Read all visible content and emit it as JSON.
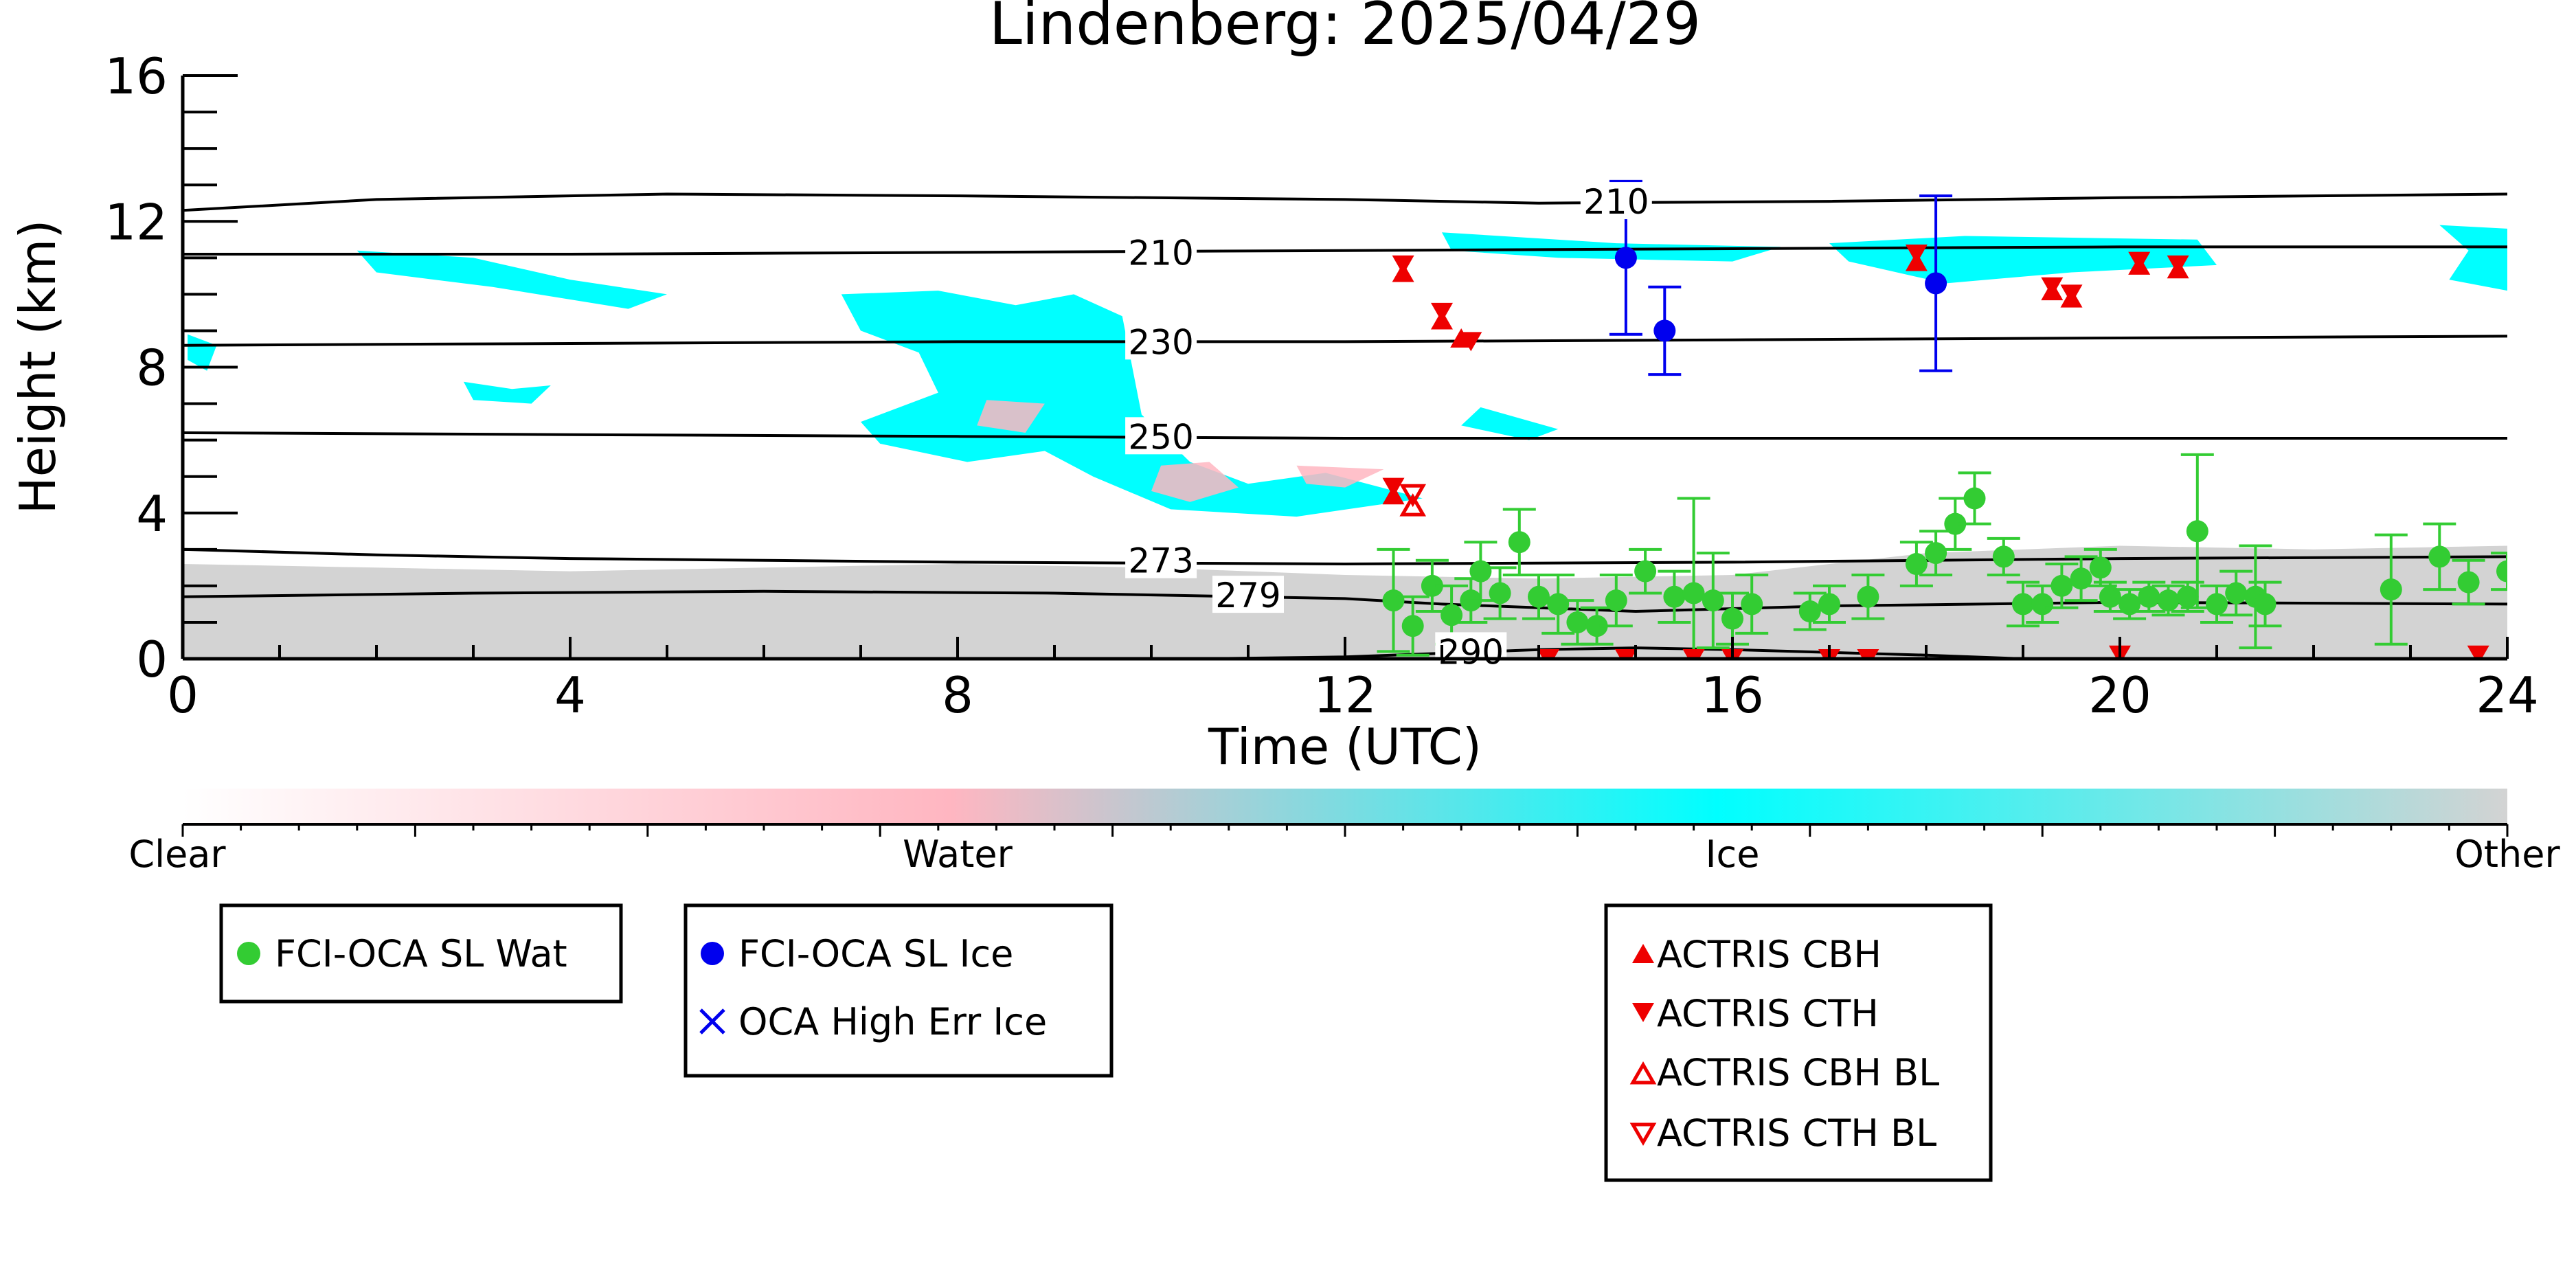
{
  "chart_data": {
    "type": "scatter",
    "title": "Lindenberg: 2025/04/29",
    "xlabel": "Time (UTC)",
    "ylabel": "Height (km)",
    "xlim": [
      0,
      24
    ],
    "ylim": [
      0,
      16
    ],
    "xticks": [
      0,
      4,
      8,
      12,
      16,
      20,
      24
    ],
    "yticks": [
      0,
      4,
      8,
      12,
      16
    ],
    "colorbar": {
      "labels": [
        "Clear",
        "Water",
        "Ice",
        "Other"
      ],
      "colors": [
        "#ffffff",
        "#ffb6c1",
        "#00ffff",
        "#d3d3d3"
      ]
    },
    "contours": [
      {
        "label": "210",
        "points": [
          [
            0,
            12.3
          ],
          [
            2,
            12.6
          ],
          [
            5,
            12.75
          ],
          [
            8,
            12.7
          ],
          [
            10,
            12.65
          ],
          [
            12,
            12.6
          ],
          [
            14,
            12.5
          ],
          [
            17,
            12.55
          ],
          [
            20,
            12.65
          ],
          [
            24,
            12.75
          ]
        ],
        "label_at": [
          14.8,
          12.55
        ]
      },
      {
        "label": "210",
        "points": [
          [
            0,
            11.1
          ],
          [
            4,
            11.1
          ],
          [
            8,
            11.15
          ],
          [
            12,
            11.2
          ],
          [
            16,
            11.25
          ],
          [
            20,
            11.3
          ],
          [
            24,
            11.3
          ]
        ],
        "label_at": [
          10.1,
          11.15
        ]
      },
      {
        "label": "230",
        "points": [
          [
            0,
            8.6
          ],
          [
            4,
            8.65
          ],
          [
            8,
            8.7
          ],
          [
            12,
            8.7
          ],
          [
            16,
            8.75
          ],
          [
            20,
            8.8
          ],
          [
            24,
            8.85
          ]
        ],
        "label_at": [
          10.1,
          8.7
        ]
      },
      {
        "label": "250",
        "points": [
          [
            0,
            6.2
          ],
          [
            4,
            6.15
          ],
          [
            8,
            6.1
          ],
          [
            12,
            6.05
          ],
          [
            16,
            6.05
          ],
          [
            20,
            6.05
          ],
          [
            24,
            6.05
          ]
        ],
        "label_at": [
          10.1,
          6.1
        ]
      },
      {
        "label": "273",
        "points": [
          [
            0,
            3.0
          ],
          [
            2,
            2.85
          ],
          [
            4,
            2.75
          ],
          [
            8,
            2.65
          ],
          [
            12,
            2.6
          ],
          [
            16,
            2.65
          ],
          [
            20,
            2.75
          ],
          [
            24,
            2.8
          ]
        ],
        "label_at": [
          10.1,
          2.7
        ]
      },
      {
        "label": "279",
        "points": [
          [
            0,
            1.7
          ],
          [
            3,
            1.8
          ],
          [
            6,
            1.85
          ],
          [
            9,
            1.8
          ],
          [
            12,
            1.65
          ],
          [
            13,
            1.5
          ],
          [
            15,
            1.3
          ],
          [
            17,
            1.45
          ],
          [
            20,
            1.55
          ],
          [
            24,
            1.5
          ]
        ],
        "label_at": [
          11.0,
          1.75
        ]
      },
      {
        "label": "290",
        "points": [
          [
            10.5,
            0.0
          ],
          [
            12,
            0.05
          ],
          [
            13,
            0.15
          ],
          [
            14,
            0.25
          ],
          [
            15,
            0.3
          ],
          [
            16,
            0.25
          ],
          [
            18,
            0.1
          ],
          [
            19,
            0.0
          ]
        ],
        "label_at": [
          13.3,
          0.2
        ]
      }
    ],
    "ice_regions": [
      [
        [
          6.8,
          10.0
        ],
        [
          7.8,
          10.1
        ],
        [
          8.6,
          9.7
        ],
        [
          9.2,
          10.0
        ],
        [
          9.7,
          9.4
        ],
        [
          9.9,
          6.7
        ],
        [
          10.4,
          5.4
        ],
        [
          11.0,
          4.8
        ],
        [
          11.8,
          5.1
        ],
        [
          12.8,
          4.4
        ],
        [
          11.5,
          3.9
        ],
        [
          10.2,
          4.1
        ],
        [
          9.4,
          5.0
        ],
        [
          8.9,
          5.7
        ],
        [
          8.1,
          5.4
        ],
        [
          7.2,
          5.9
        ],
        [
          7.0,
          6.5
        ],
        [
          7.8,
          7.3
        ],
        [
          7.6,
          8.4
        ],
        [
          7.0,
          9.0
        ]
      ],
      [
        [
          1.8,
          11.2
        ],
        [
          3.0,
          11.0
        ],
        [
          4.0,
          10.4
        ],
        [
          5.0,
          10.0
        ],
        [
          4.6,
          9.6
        ],
        [
          3.2,
          10.2
        ],
        [
          2.0,
          10.6
        ]
      ],
      [
        [
          0.05,
          8.9
        ],
        [
          0.35,
          8.6
        ],
        [
          0.25,
          7.9
        ],
        [
          0.05,
          8.2
        ]
      ],
      [
        [
          2.9,
          7.6
        ],
        [
          3.4,
          7.4
        ],
        [
          3.8,
          7.5
        ],
        [
          3.6,
          7.0
        ],
        [
          3.0,
          7.1
        ]
      ],
      [
        [
          13.4,
          6.9
        ],
        [
          14.2,
          6.3
        ],
        [
          13.9,
          6.0
        ],
        [
          13.2,
          6.4
        ]
      ],
      [
        [
          13.0,
          11.7
        ],
        [
          14.8,
          11.4
        ],
        [
          16.5,
          11.3
        ],
        [
          16.0,
          10.9
        ],
        [
          14.2,
          11.0
        ],
        [
          13.1,
          11.2
        ]
      ],
      [
        [
          17.0,
          11.4
        ],
        [
          18.4,
          11.6
        ],
        [
          20.8,
          11.5
        ],
        [
          21.0,
          10.8
        ],
        [
          19.5,
          10.6
        ],
        [
          18.2,
          10.3
        ],
        [
          17.2,
          10.9
        ]
      ],
      [
        [
          23.3,
          11.9
        ],
        [
          24.0,
          11.8
        ],
        [
          24.0,
          10.1
        ],
        [
          23.4,
          10.4
        ],
        [
          23.6,
          11.2
        ]
      ]
    ],
    "water_regions": [
      [
        [
          10.1,
          5.3
        ],
        [
          10.6,
          5.4
        ],
        [
          10.9,
          4.7
        ],
        [
          10.4,
          4.3
        ],
        [
          10.0,
          4.6
        ]
      ],
      [
        [
          11.5,
          5.3
        ],
        [
          12.4,
          5.2
        ],
        [
          12.0,
          4.7
        ],
        [
          11.6,
          4.8
        ]
      ],
      [
        [
          8.3,
          7.1
        ],
        [
          8.9,
          7.0
        ],
        [
          8.7,
          6.2
        ],
        [
          8.2,
          6.4
        ]
      ]
    ],
    "boundary_layer_top": [
      [
        0,
        2.6
      ],
      [
        2,
        2.5
      ],
      [
        4,
        2.4
      ],
      [
        6,
        2.5
      ],
      [
        8,
        2.6
      ],
      [
        10,
        2.5
      ],
      [
        12,
        2.3
      ],
      [
        14,
        2.2
      ],
      [
        16,
        2.3
      ],
      [
        18,
        2.9
      ],
      [
        20,
        3.1
      ],
      [
        22,
        3.0
      ],
      [
        24,
        3.1
      ]
    ],
    "series": [
      {
        "name": "FCI-OCA SL Wat",
        "color": "#33cc33",
        "marker": "circle",
        "points": [
          [
            12.5,
            1.6,
            1.4
          ],
          [
            12.7,
            0.9,
            0.8
          ],
          [
            12.9,
            2.0,
            0.7
          ],
          [
            13.1,
            1.2,
            0.8
          ],
          [
            13.3,
            1.6,
            0.6
          ],
          [
            13.4,
            2.4,
            0.8
          ],
          [
            13.6,
            1.8,
            0.7
          ],
          [
            13.8,
            3.2,
            0.9
          ],
          [
            14.0,
            1.7,
            0.6
          ],
          [
            14.2,
            1.5,
            0.8
          ],
          [
            14.4,
            1.0,
            0.6
          ],
          [
            14.6,
            0.9,
            0.5
          ],
          [
            14.8,
            1.6,
            0.7
          ],
          [
            15.1,
            2.4,
            0.6
          ],
          [
            15.4,
            1.7,
            0.7
          ],
          [
            15.6,
            1.8,
            2.6
          ],
          [
            15.8,
            1.6,
            1.3
          ],
          [
            16.0,
            1.1,
            0.7
          ],
          [
            16.2,
            1.5,
            0.8
          ],
          [
            16.8,
            1.3,
            0.5
          ],
          [
            17.0,
            1.5,
            0.5
          ],
          [
            17.4,
            1.7,
            0.6
          ],
          [
            17.9,
            2.6,
            0.6
          ],
          [
            18.1,
            2.9,
            0.6
          ],
          [
            18.3,
            3.7,
            0.7
          ],
          [
            18.5,
            4.4,
            0.7
          ],
          [
            18.8,
            2.8,
            0.5
          ],
          [
            19.0,
            1.5,
            0.6
          ],
          [
            19.2,
            1.5,
            0.5
          ],
          [
            19.4,
            2.0,
            0.6
          ],
          [
            19.6,
            2.2,
            0.6
          ],
          [
            19.8,
            2.5,
            0.5
          ],
          [
            19.9,
            1.7,
            0.4
          ],
          [
            20.1,
            1.5,
            0.4
          ],
          [
            20.3,
            1.7,
            0.4
          ],
          [
            20.5,
            1.6,
            0.4
          ],
          [
            20.7,
            1.7,
            0.4
          ],
          [
            20.8,
            3.5,
            2.1
          ],
          [
            21.0,
            1.5,
            0.5
          ],
          [
            21.2,
            1.8,
            0.6
          ],
          [
            21.4,
            1.7,
            1.4
          ],
          [
            21.5,
            1.5,
            0.6
          ],
          [
            22.8,
            1.9,
            1.5
          ],
          [
            23.3,
            2.8,
            0.9
          ],
          [
            23.6,
            2.1,
            0.6
          ],
          [
            24.0,
            2.4,
            0.5
          ]
        ]
      },
      {
        "name": "FCI-OCA SL Ice",
        "color": "#0000ee",
        "marker": "circle",
        "points": [
          [
            14.9,
            11.0,
            2.1
          ],
          [
            15.3,
            9.0,
            1.2
          ],
          [
            18.1,
            10.3,
            2.4
          ]
        ]
      },
      {
        "name": "OCA High Err Ice",
        "color": "#0000ee",
        "marker": "x",
        "points": []
      },
      {
        "name": "ACTRIS CBH",
        "color": "#ee0000",
        "marker": "triangle-up",
        "points": [
          [
            12.6,
            10.6
          ],
          [
            13.0,
            9.3
          ],
          [
            13.2,
            8.8
          ],
          [
            17.9,
            10.9
          ],
          [
            19.3,
            10.1
          ],
          [
            19.5,
            9.9
          ],
          [
            20.2,
            10.8
          ],
          [
            20.6,
            10.7
          ],
          [
            12.5,
            4.5
          ]
        ]
      },
      {
        "name": "ACTRIS CTH",
        "color": "#ee0000",
        "marker": "triangle-down",
        "points": [
          [
            12.6,
            10.8
          ],
          [
            13.0,
            9.5
          ],
          [
            13.3,
            8.7
          ],
          [
            17.9,
            11.1
          ],
          [
            19.3,
            10.2
          ],
          [
            19.5,
            10.0
          ],
          [
            20.2,
            10.9
          ],
          [
            20.6,
            10.8
          ],
          [
            12.5,
            4.7
          ],
          [
            13.1,
            0.1
          ],
          [
            14.1,
            0.0
          ],
          [
            14.9,
            0.0
          ],
          [
            15.6,
            0.0
          ],
          [
            16.0,
            0.0
          ],
          [
            17.0,
            0.0
          ],
          [
            17.4,
            0.0
          ],
          [
            20.0,
            0.1
          ],
          [
            23.7,
            0.1
          ]
        ]
      },
      {
        "name": "ACTRIS CBH BL",
        "color": "#ee0000",
        "marker": "triangle-up-open",
        "points": [
          [
            12.7,
            4.2
          ]
        ]
      },
      {
        "name": "ACTRIS CTH BL",
        "color": "#ee0000",
        "marker": "triangle-down-open",
        "points": [
          [
            12.7,
            4.5
          ]
        ]
      }
    ]
  },
  "legends": {
    "box1": [
      "FCI-OCA SL Wat"
    ],
    "box2": [
      "FCI-OCA SL Ice",
      "OCA High Err Ice"
    ],
    "box3": [
      "ACTRIS CBH",
      "ACTRIS CTH",
      "ACTRIS CBH BL",
      "ACTRIS CTH BL"
    ]
  }
}
